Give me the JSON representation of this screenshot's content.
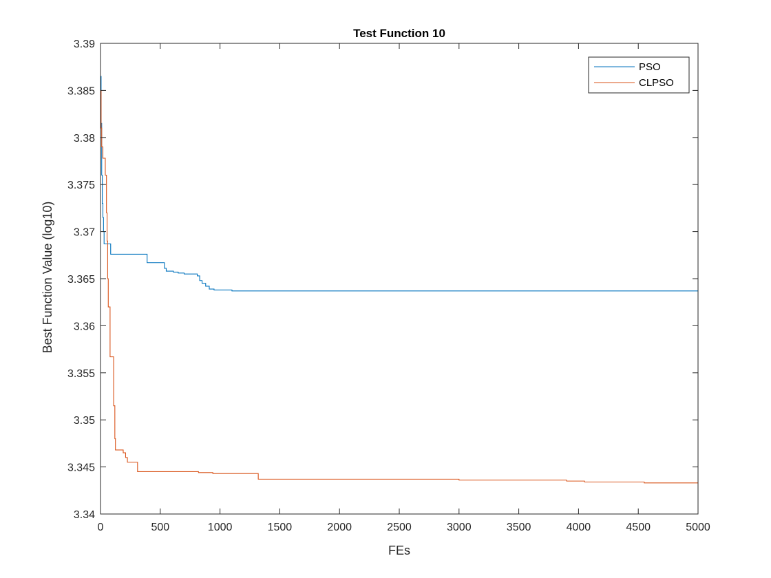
{
  "chart_data": {
    "type": "line",
    "title": "Test Function 10",
    "xlabel": "FEs",
    "ylabel": "Best Function Value (log10)",
    "xlim": [
      0,
      5000
    ],
    "ylim": [
      3.34,
      3.39
    ],
    "x_ticks": [
      0,
      500,
      1000,
      1500,
      2000,
      2500,
      3000,
      3500,
      4000,
      4500,
      5000
    ],
    "x_tick_labels": [
      "0",
      "500",
      "1000",
      "1500",
      "2000",
      "2500",
      "3000",
      "3500",
      "4000",
      "4500",
      "5000"
    ],
    "y_ticks": [
      3.34,
      3.345,
      3.35,
      3.355,
      3.36,
      3.365,
      3.37,
      3.375,
      3.38,
      3.385,
      3.39
    ],
    "y_tick_labels": [
      "3.34",
      "3.345",
      "3.35",
      "3.355",
      "3.36",
      "3.365",
      "3.37",
      "3.375",
      "3.38",
      "3.385",
      "3.39"
    ],
    "grid": false,
    "legend_position": "top-right",
    "series": [
      {
        "name": "PSO",
        "color": "#0072BD",
        "step": true,
        "points": [
          [
            0,
            3.3865
          ],
          [
            5,
            3.3815
          ],
          [
            10,
            3.376
          ],
          [
            15,
            3.373
          ],
          [
            20,
            3.3715
          ],
          [
            25,
            3.37
          ],
          [
            30,
            3.3687
          ],
          [
            85,
            3.3676
          ],
          [
            390,
            3.3667
          ],
          [
            535,
            3.3661
          ],
          [
            550,
            3.3658
          ],
          [
            610,
            3.3657
          ],
          [
            650,
            3.3656
          ],
          [
            700,
            3.3655
          ],
          [
            810,
            3.3653
          ],
          [
            830,
            3.3648
          ],
          [
            850,
            3.3645
          ],
          [
            880,
            3.3642
          ],
          [
            910,
            3.3639
          ],
          [
            950,
            3.3638
          ],
          [
            1050,
            3.3638
          ],
          [
            1100,
            3.3637
          ],
          [
            2000,
            3.3637
          ],
          [
            5000,
            3.3637
          ]
        ]
      },
      {
        "name": "CLPSO",
        "color": "#D95319",
        "step": true,
        "points": [
          [
            0,
            3.385
          ],
          [
            5,
            3.381
          ],
          [
            10,
            3.379
          ],
          [
            20,
            3.3778
          ],
          [
            40,
            3.376
          ],
          [
            50,
            3.372
          ],
          [
            55,
            3.369
          ],
          [
            60,
            3.365
          ],
          [
            65,
            3.362
          ],
          [
            80,
            3.3567
          ],
          [
            110,
            3.3515
          ],
          [
            120,
            3.348
          ],
          [
            125,
            3.3468
          ],
          [
            190,
            3.3465
          ],
          [
            210,
            3.346
          ],
          [
            225,
            3.3455
          ],
          [
            310,
            3.3445
          ],
          [
            820,
            3.3444
          ],
          [
            940,
            3.3443
          ],
          [
            1320,
            3.3437
          ],
          [
            3000,
            3.3436
          ],
          [
            3900,
            3.3435
          ],
          [
            4050,
            3.3434
          ],
          [
            4550,
            3.3433
          ],
          [
            5000,
            3.3433
          ]
        ]
      }
    ]
  }
}
